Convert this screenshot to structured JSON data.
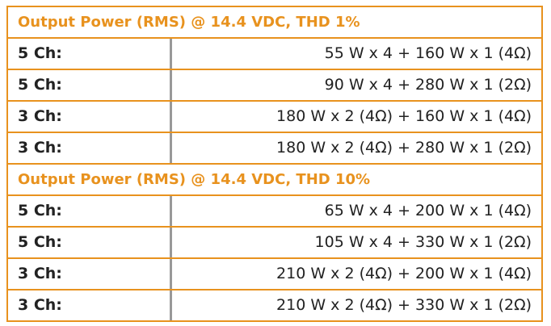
{
  "table": {
    "sections": [
      {
        "title": "Output Power (RMS) @ 14.4 VDC, THD 1%",
        "rows": [
          [
            "5 Ch:",
            "55 W x 4 + 160 W x 1 (4Ω)"
          ],
          [
            "5 Ch:",
            "90 W x 4 + 280 W x 1 (2Ω)"
          ],
          [
            "3 Ch:",
            "180 W x 2 (4Ω) + 160 W x 1 (4Ω)"
          ],
          [
            "3 Ch:",
            "180 W x 2 (4Ω) + 280 W x 1 (2Ω)"
          ]
        ]
      },
      {
        "title": "Output Power (RMS) @ 14.4 VDC, THD 10%",
        "rows": [
          [
            "5 Ch:",
            "65 W x 4 + 200 W x 1 (4Ω)"
          ],
          [
            "5 Ch:",
            "105 W x 4 + 330 W x 1 (2Ω)"
          ],
          [
            "3 Ch:",
            "210 W x 2 (4Ω) + 200 W x 1 (4Ω)"
          ],
          [
            "3 Ch:",
            "210 W x 2 (4Ω) + 330 W x 1 (2Ω)"
          ]
        ]
      }
    ]
  }
}
